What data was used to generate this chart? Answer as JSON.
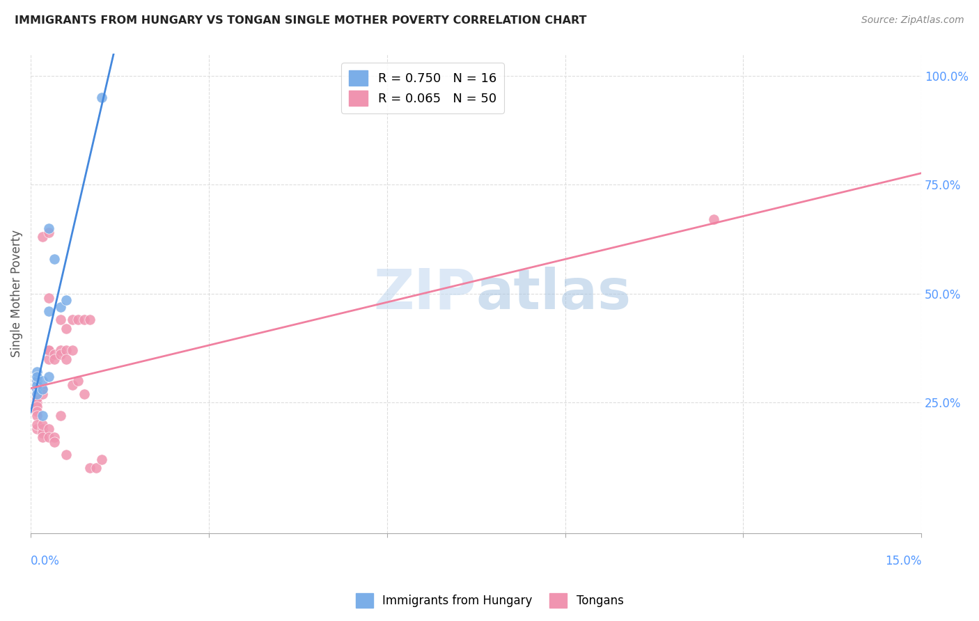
{
  "title": "IMMIGRANTS FROM HUNGARY VS TONGAN SINGLE MOTHER POVERTY CORRELATION CHART",
  "source": "Source: ZipAtlas.com",
  "ylabel": "Single Mother Poverty",
  "ylabel_right_ticks": [
    "100.0%",
    "75.0%",
    "50.0%",
    "25.0%"
  ],
  "ylabel_right_vals": [
    1.0,
    0.75,
    0.5,
    0.25
  ],
  "xlim": [
    0.0,
    0.15
  ],
  "ylim": [
    -0.05,
    1.05
  ],
  "legend_label_hungary": "R = 0.750   N = 16",
  "legend_label_tongan": "R = 0.065   N = 50",
  "hungary_color": "#7baee8",
  "tongan_color": "#f094b0",
  "hungary_line_color": "#4488dd",
  "tongan_line_color": "#f080a0",
  "watermark_zip": "ZIP",
  "watermark_atlas": "atlas",
  "hungary_points": [
    [
      0.001,
      0.3
    ],
    [
      0.001,
      0.32
    ],
    [
      0.001,
      0.28
    ],
    [
      0.001,
      0.29
    ],
    [
      0.001,
      0.31
    ],
    [
      0.001,
      0.27
    ],
    [
      0.002,
      0.28
    ],
    [
      0.002,
      0.3
    ],
    [
      0.002,
      0.22
    ],
    [
      0.003,
      0.65
    ],
    [
      0.003,
      0.46
    ],
    [
      0.003,
      0.31
    ],
    [
      0.004,
      0.58
    ],
    [
      0.005,
      0.47
    ],
    [
      0.006,
      0.485
    ],
    [
      0.012,
      0.95
    ]
  ],
  "tongan_points": [
    [
      0.001,
      0.28
    ],
    [
      0.001,
      0.27
    ],
    [
      0.001,
      0.29
    ],
    [
      0.001,
      0.3
    ],
    [
      0.001,
      0.25
    ],
    [
      0.001,
      0.26
    ],
    [
      0.001,
      0.24
    ],
    [
      0.001,
      0.23
    ],
    [
      0.001,
      0.22
    ],
    [
      0.001,
      0.19
    ],
    [
      0.001,
      0.2
    ],
    [
      0.002,
      0.28
    ],
    [
      0.002,
      0.28
    ],
    [
      0.002,
      0.27
    ],
    [
      0.002,
      0.19
    ],
    [
      0.002,
      0.18
    ],
    [
      0.002,
      0.17
    ],
    [
      0.002,
      0.2
    ],
    [
      0.002,
      0.63
    ],
    [
      0.003,
      0.64
    ],
    [
      0.003,
      0.49
    ],
    [
      0.003,
      0.37
    ],
    [
      0.003,
      0.35
    ],
    [
      0.003,
      0.37
    ],
    [
      0.003,
      0.19
    ],
    [
      0.003,
      0.17
    ],
    [
      0.004,
      0.36
    ],
    [
      0.004,
      0.35
    ],
    [
      0.004,
      0.17
    ],
    [
      0.004,
      0.16
    ],
    [
      0.005,
      0.44
    ],
    [
      0.005,
      0.37
    ],
    [
      0.005,
      0.36
    ],
    [
      0.005,
      0.22
    ],
    [
      0.006,
      0.42
    ],
    [
      0.006,
      0.37
    ],
    [
      0.006,
      0.35
    ],
    [
      0.006,
      0.13
    ],
    [
      0.007,
      0.37
    ],
    [
      0.007,
      0.29
    ],
    [
      0.007,
      0.44
    ],
    [
      0.008,
      0.44
    ],
    [
      0.008,
      0.3
    ],
    [
      0.009,
      0.44
    ],
    [
      0.009,
      0.27
    ],
    [
      0.01,
      0.44
    ],
    [
      0.01,
      0.1
    ],
    [
      0.011,
      0.1
    ],
    [
      0.012,
      0.12
    ],
    [
      0.115,
      0.67
    ]
  ],
  "grid_color": "#dddddd",
  "bg_color": "#ffffff",
  "bottom_legend_hungary": "Immigrants from Hungary",
  "bottom_legend_tongan": "Tongans"
}
